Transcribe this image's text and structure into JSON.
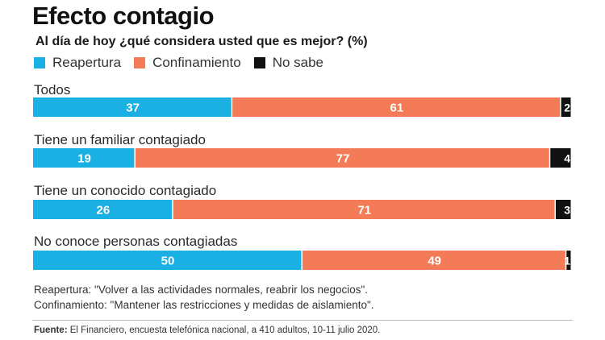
{
  "chart_data": {
    "type": "bar",
    "orientation": "horizontal-stacked",
    "title": "Efecto contagio",
    "subtitle": "Al día de hoy ¿qué considera usted que es mejor? (%)",
    "categories": [
      "Todos",
      "Tiene un familiar contagiado",
      "Tiene un conocido contagiado",
      "No conoce personas contagiadas"
    ],
    "series": [
      {
        "name": "Reapertura",
        "color": "#1ab0e3",
        "values": [
          37,
          19,
          26,
          50
        ]
      },
      {
        "name": "Confinamiento",
        "color": "#f47b57",
        "values": [
          61,
          77,
          71,
          49
        ]
      },
      {
        "name": "No sabe",
        "color": "#111111",
        "values": [
          2,
          4,
          3,
          1
        ]
      }
    ],
    "xlim": [
      0,
      100
    ],
    "legend_position": "top-left",
    "grid": false
  },
  "notes": [
    "Reapertura: \"Volver a las actividades normales, reabrir los negocios\".",
    "Confinamiento: \"Mantener las restricciones y medidas de aislamiento\"."
  ],
  "source": {
    "label": "Fuente:",
    "text": " El Financiero, encuesta telefónica nacional, a 410 adultos, 10-11 julio 2020."
  }
}
